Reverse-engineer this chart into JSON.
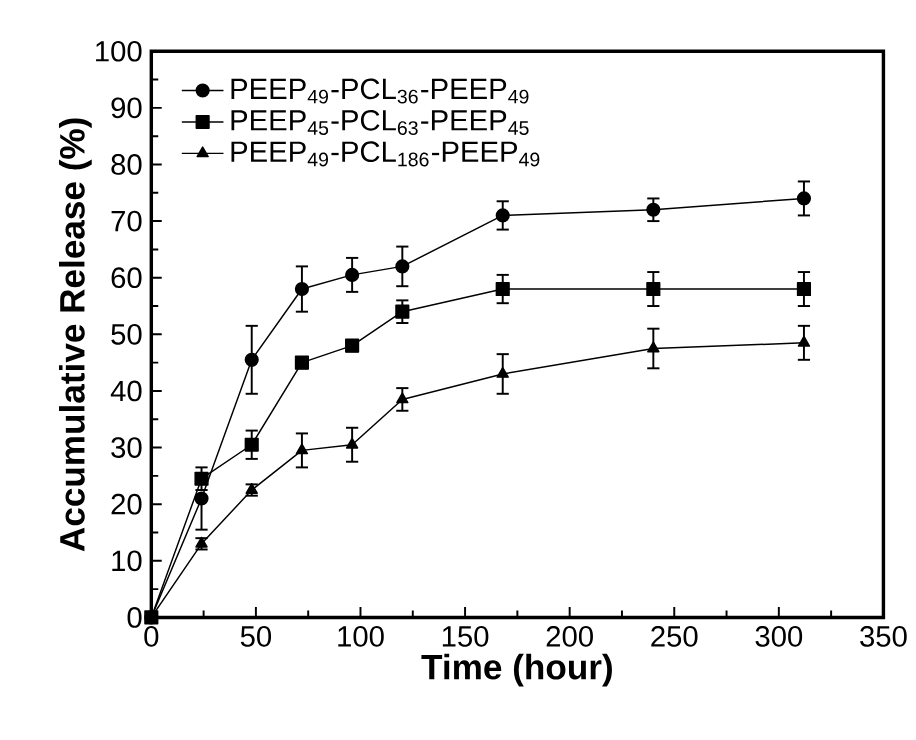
{
  "chart_data": {
    "type": "line",
    "xlabel": "Time (hour)",
    "ylabel": "Accumulative Release (%)",
    "x": [
      0,
      24,
      48,
      72,
      96,
      120,
      168,
      240,
      312
    ],
    "series": [
      {
        "name": "PEEP$_{49}$-PCL$_{36}$-PEEP$_{49}$",
        "color": "#000000",
        "marker": "circle",
        "values": [
          0,
          21,
          45.5,
          58,
          60.5,
          62,
          71,
          72,
          74
        ],
        "errors": [
          0,
          [
            15.5,
            21
          ],
          6,
          4,
          3,
          3.5,
          2.5,
          2,
          3
        ]
      },
      {
        "name": "PEEP$_{45}$-PCL$_{63}$-PEEP$_{45}$",
        "color": "#000000",
        "marker": "square",
        "values": [
          0,
          24.5,
          30.5,
          45,
          48,
          54,
          58,
          58,
          58
        ],
        "errors": [
          0,
          2,
          2.5,
          1,
          1,
          2,
          2.5,
          3,
          3
        ]
      },
      {
        "name": "PEEP$_{49}$-PCL$_{186}$-PEEP$_{49}$",
        "color": "#000000",
        "marker": "triangle",
        "values": [
          0,
          13,
          22.5,
          29.5,
          30.5,
          38.5,
          43,
          47.5,
          48.5
        ],
        "errors": [
          0,
          1,
          1,
          3,
          3,
          2,
          3.5,
          3.5,
          3
        ]
      }
    ],
    "xlim": [
      0,
      350
    ],
    "xticks": [
      0,
      50,
      100,
      150,
      200,
      250,
      300,
      350
    ],
    "ylim": [
      0,
      100
    ],
    "yticks": [
      0,
      10,
      20,
      30,
      40,
      50,
      60,
      70,
      80,
      90,
      100
    ],
    "grid": false,
    "legend": "top left",
    "line_style": "solid"
  }
}
